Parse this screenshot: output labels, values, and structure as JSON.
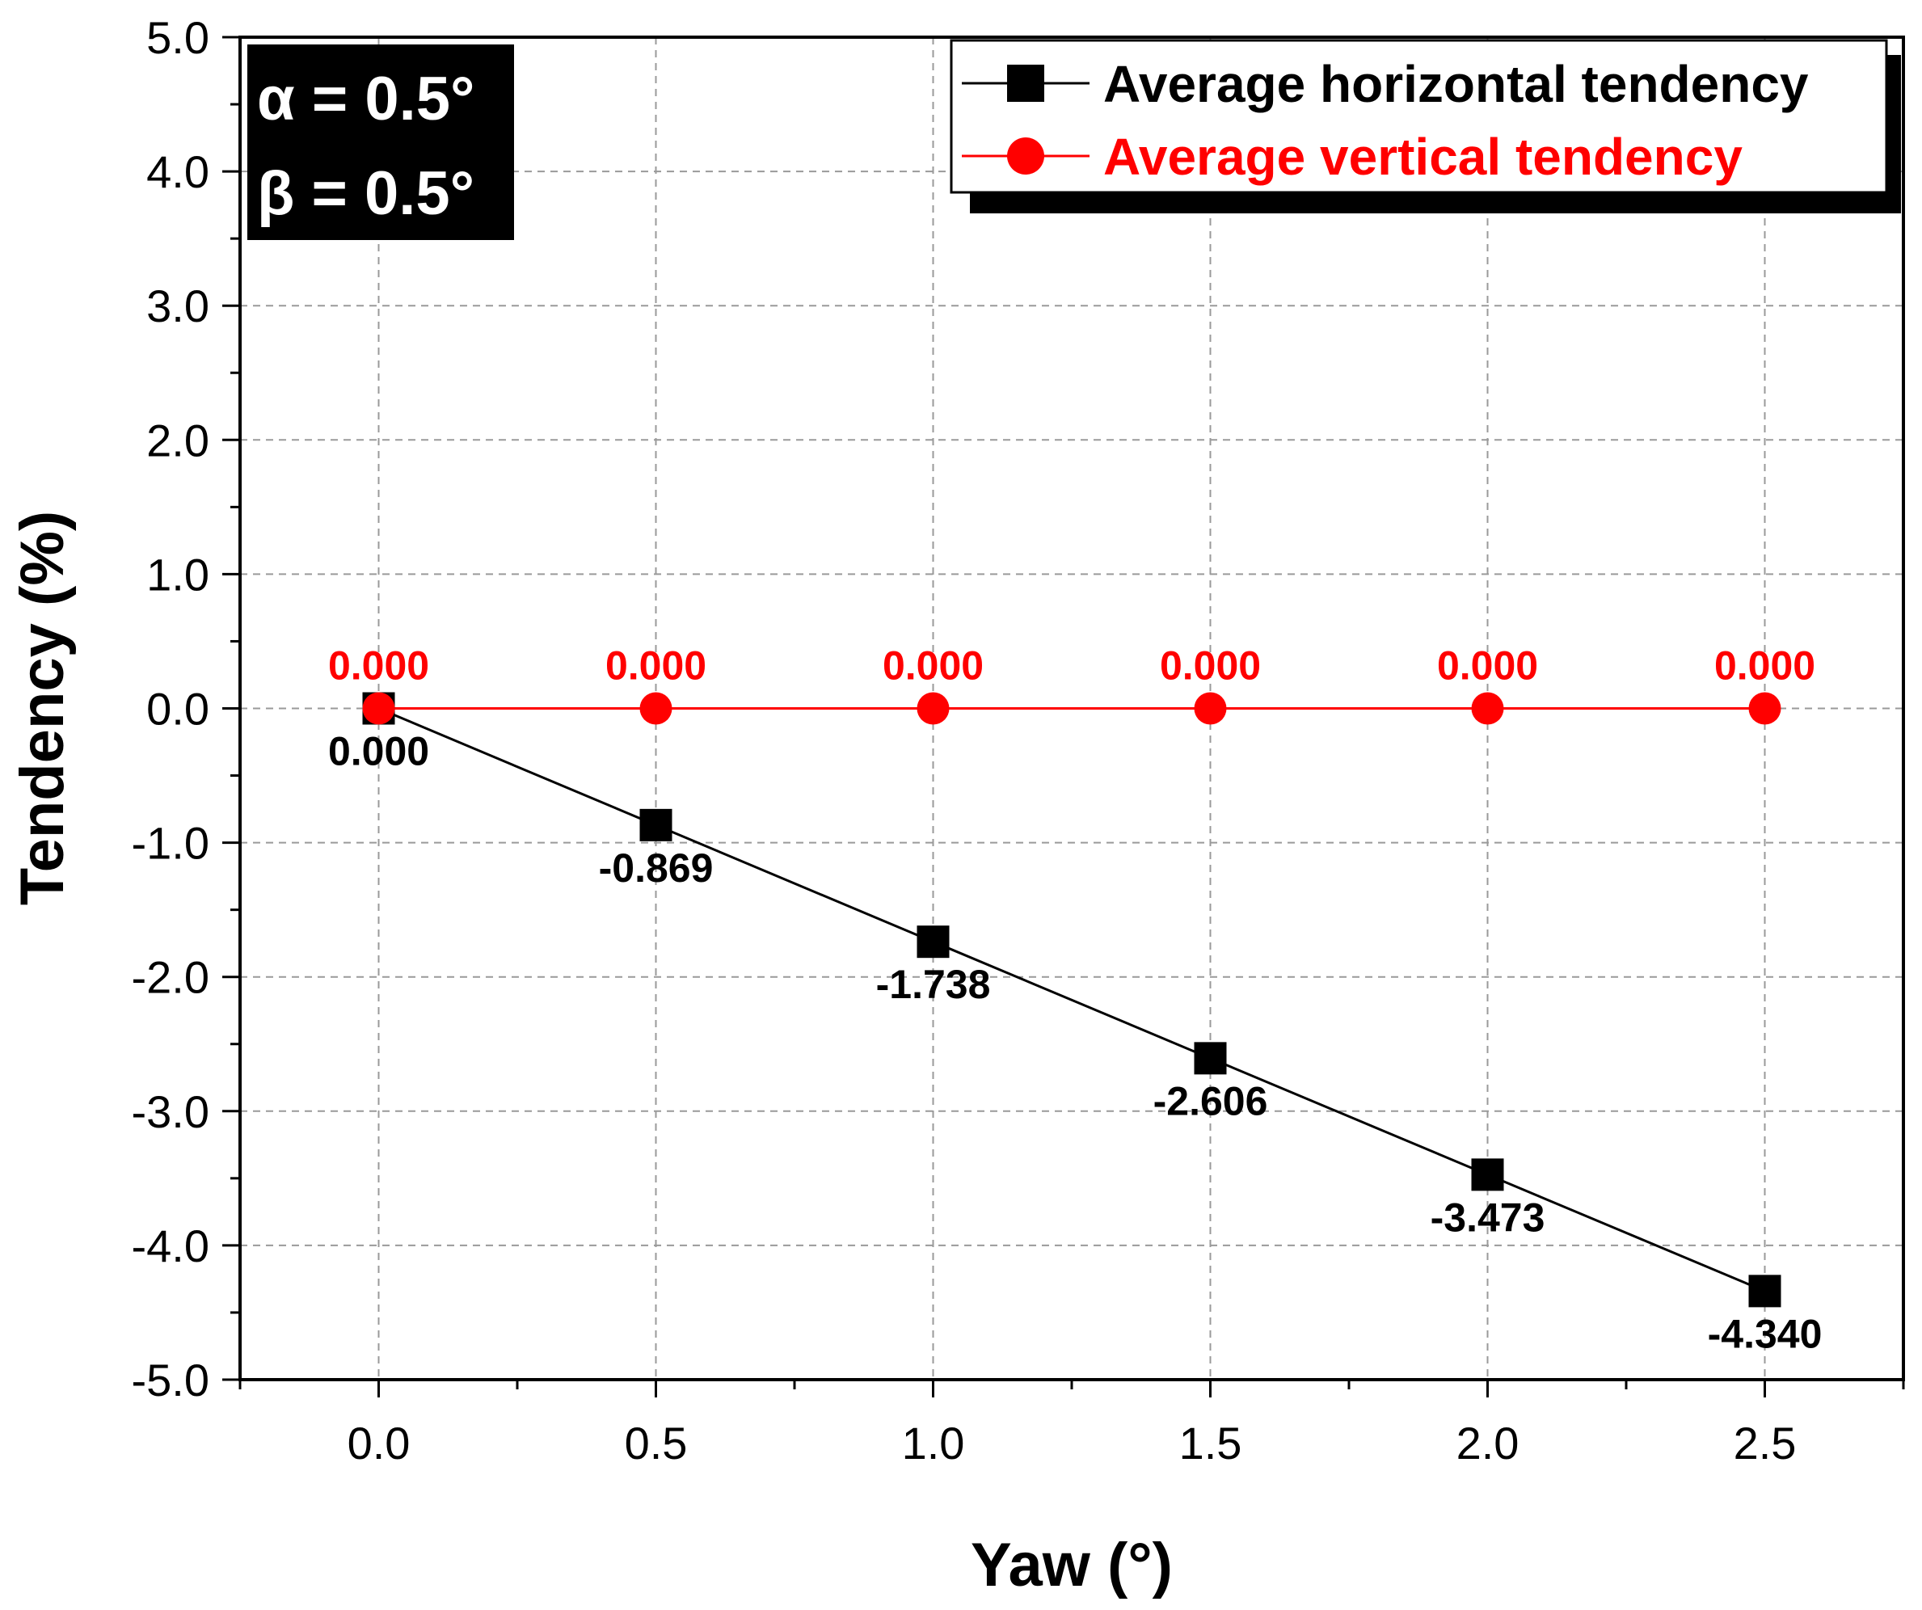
{
  "chart_data": {
    "type": "line",
    "x": [
      0.0,
      0.5,
      1.0,
      1.5,
      2.0,
      2.5
    ],
    "x_tick_labels": [
      "0.0",
      "0.5",
      "1.0",
      "1.5",
      "2.0",
      "2.5"
    ],
    "y_tick_labels": [
      "5.0",
      "4.0",
      "3.0",
      "2.0",
      "1.0",
      "0.0",
      "-1.0",
      "-2.0",
      "-3.0",
      "-4.0",
      "-5.0"
    ],
    "xlim": [
      -0.25,
      2.75
    ],
    "ylim": [
      -5.0,
      5.0
    ],
    "xlabel": "Yaw (°)",
    "ylabel": "Tendency (%)",
    "grid": true,
    "legend_position": "top-right",
    "series": [
      {
        "name": "Average horizontal tendency",
        "color": "#000000",
        "marker": "square",
        "values": [
          0.0,
          -0.869,
          -1.738,
          -2.606,
          -3.473,
          -4.34
        ],
        "labels": [
          "0.000",
          "-0.869",
          "-1.738",
          "-2.606",
          "-3.473",
          "-4.340"
        ]
      },
      {
        "name": "Average vertical tendency",
        "color": "#ff0000",
        "marker": "circle",
        "values": [
          0.0,
          0.0,
          0.0,
          0.0,
          0.0,
          0.0
        ],
        "labels": [
          "0.000",
          "0.000",
          "0.000",
          "0.000",
          "0.000",
          "0.000"
        ]
      }
    ],
    "annotations": {
      "alpha": "α = 0.5°",
      "beta": "β = 0.5°"
    }
  }
}
